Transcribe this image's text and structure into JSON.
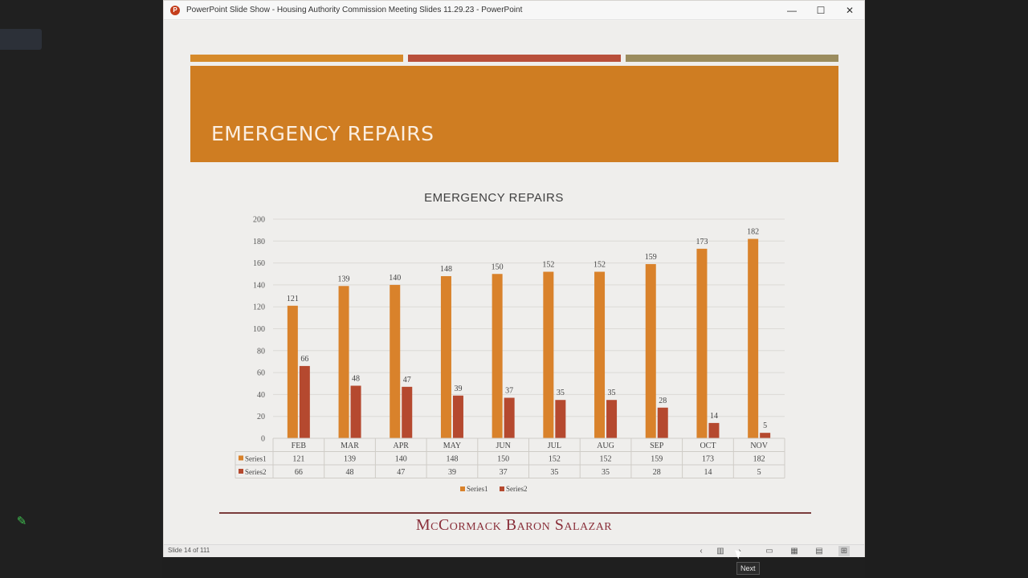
{
  "window": {
    "title": "PowerPoint Slide Show  -  Housing Authority Commission Meeting Slides 11.29.23  -  PowerPoint",
    "minimize": "—",
    "maximize": "☐",
    "close": "✕"
  },
  "slide": {
    "title": "EMERGENCY REPAIRS",
    "footer_brand": "McCormack Baron Salazar",
    "accent_colors": [
      "#d68a2a",
      "#b84f3a",
      "#9b8c5e"
    ],
    "header_color": "#cf7d22"
  },
  "chart_data": {
    "type": "bar",
    "title": "EMERGENCY REPAIRS",
    "categories": [
      "FEB",
      "MAR",
      "APR",
      "MAY",
      "JUN",
      "JUL",
      "AUG",
      "SEP",
      "OCT",
      "NOV"
    ],
    "series": [
      {
        "name": "Series1",
        "color": "#d9822b",
        "values": [
          121,
          139,
          140,
          148,
          150,
          152,
          152,
          159,
          173,
          182
        ]
      },
      {
        "name": "Series2",
        "color": "#b5492f",
        "values": [
          66,
          48,
          47,
          39,
          37,
          35,
          35,
          28,
          14,
          5
        ]
      }
    ],
    "ylim": [
      0,
      200
    ],
    "yticks": [
      0,
      20,
      40,
      60,
      80,
      100,
      120,
      140,
      160,
      180,
      200
    ],
    "grid": true,
    "data_table": true,
    "legend": "bottom"
  },
  "statusbar": {
    "slide_counter": "Slide 14 of 111",
    "tooltip": "Next"
  }
}
